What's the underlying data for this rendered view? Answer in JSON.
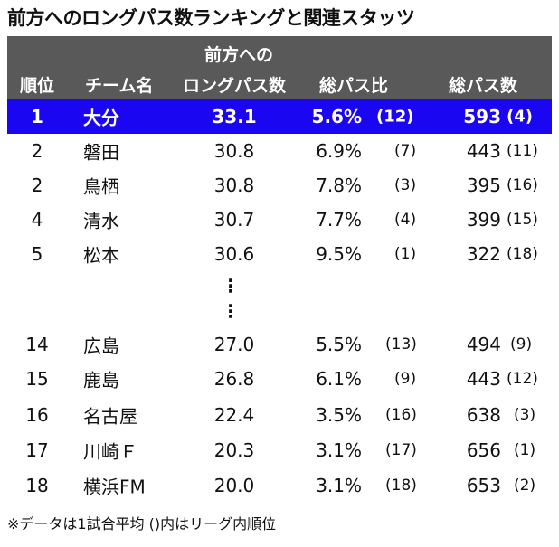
{
  "title": "前方へのロングパス数ランキングと関連スタッツ",
  "headers": {
    "rank": "順位",
    "team": "チーム名",
    "long_line1": "前方への",
    "long_line2": "ロングパス数",
    "ratio": "総パス比",
    "total": "総パス数"
  },
  "rows": [
    {
      "rank": "1",
      "team": "大分",
      "long": "33.1",
      "ratio": "5.6%",
      "ratio_rank": "(12)",
      "total": "593",
      "total_rank": "(4)",
      "highlight": true
    },
    {
      "rank": "2",
      "team": "磐田",
      "long": "30.8",
      "ratio": "6.9%",
      "ratio_rank": "(7)",
      "total": "443",
      "total_rank": "(11)"
    },
    {
      "rank": "2",
      "team": "鳥栖",
      "long": "30.8",
      "ratio": "7.8%",
      "ratio_rank": "(3)",
      "total": "395",
      "total_rank": "(16)"
    },
    {
      "rank": "4",
      "team": "清水",
      "long": "30.7",
      "ratio": "7.7%",
      "ratio_rank": "(4)",
      "total": "399",
      "total_rank": "(15)"
    },
    {
      "rank": "5",
      "team": "松本",
      "long": "30.6",
      "ratio": "9.5%",
      "ratio_rank": "(1)",
      "total": "322",
      "total_rank": "(18)"
    },
    {
      "rank": "14",
      "team": "広島",
      "long": "27.0",
      "ratio": "5.5%",
      "ratio_rank": "(13)",
      "total": "494",
      "total_rank": "(9)"
    },
    {
      "rank": "15",
      "team": "鹿島",
      "long": "26.8",
      "ratio": "6.1%",
      "ratio_rank": "(9)",
      "total": "443",
      "total_rank": "(12)"
    },
    {
      "rank": "16",
      "team": "名古屋",
      "long": "22.4",
      "ratio": "3.5%",
      "ratio_rank": "(16)",
      "total": "638",
      "total_rank": "(3)"
    },
    {
      "rank": "17",
      "team": "川崎Ｆ",
      "long": "20.3",
      "ratio": "3.1%",
      "ratio_rank": "(17)",
      "total": "656",
      "total_rank": "(1)"
    },
    {
      "rank": "18",
      "team": "横浜FM",
      "long": "20.0",
      "ratio": "3.1%",
      "ratio_rank": "(18)",
      "total": "653",
      "total_rank": "(2)"
    }
  ],
  "ellipsis": "⋮",
  "footnote": "※データは1試合平均 ()内はリーグ内順位"
}
